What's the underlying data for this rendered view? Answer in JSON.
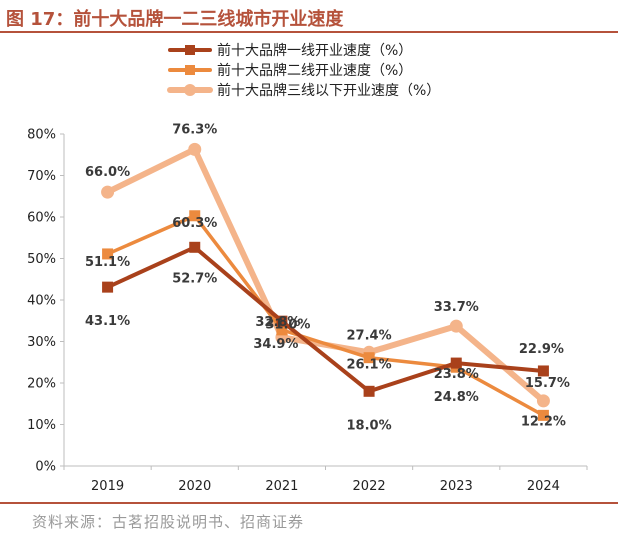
{
  "figure": {
    "title": "图 17：前十大品牌一二三线城市开业速度",
    "source": "资料来源：古茗招股说明书、招商证券"
  },
  "chart_data": {
    "type": "line",
    "categories": [
      "2019",
      "2020",
      "2021",
      "2022",
      "2023",
      "2024"
    ],
    "ylim": [
      0,
      80
    ],
    "y_ticks": [
      "0%",
      "10%",
      "20%",
      "30%",
      "40%",
      "50%",
      "60%",
      "70%",
      "80%"
    ],
    "grid": false,
    "legend_position": "top",
    "series": [
      {
        "name": "前十大品牌一线开业速度（%）",
        "color": "#a9411b",
        "marker": "square",
        "values": [
          43.1,
          52.7,
          34.9,
          18.0,
          24.8,
          22.9
        ],
        "labels": [
          "43.1%",
          "52.7%",
          "34.9%",
          "18.0%",
          "24.8%",
          "22.9%"
        ]
      },
      {
        "name": "前十大品牌二线开业速度（%）",
        "color": "#ec8a3e",
        "marker": "square",
        "values": [
          51.1,
          60.3,
          32.8,
          26.1,
          23.8,
          12.2
        ],
        "labels": [
          "51.1%",
          "60.3%",
          "32.8%",
          "26.1%",
          "23.8%",
          "12.2%"
        ]
      },
      {
        "name": "前十大品牌三线以下开业速度（%）",
        "color": "#f4b48a",
        "marker": "circle",
        "values": [
          66.0,
          76.3,
          31.0,
          27.4,
          33.7,
          15.7
        ],
        "labels": [
          "66.0%",
          "76.3%",
          "31.0%",
          "27.4%",
          "33.7%",
          "15.7%"
        ]
      }
    ]
  }
}
